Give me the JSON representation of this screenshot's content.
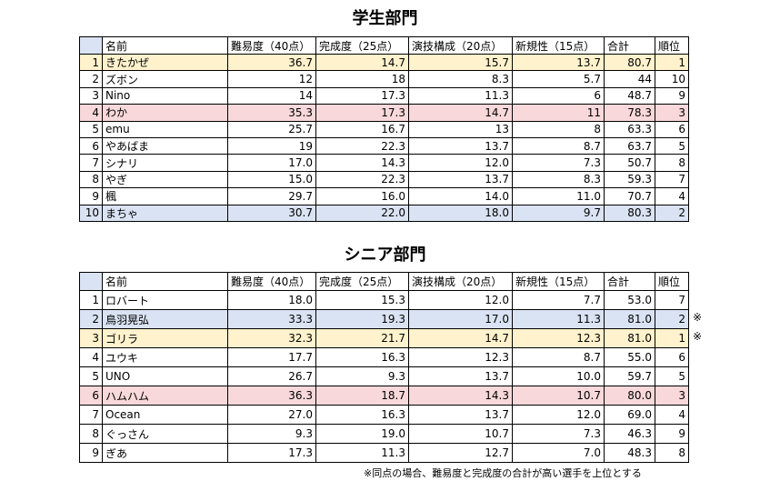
{
  "sections": [
    {
      "title": "学生部門",
      "header": [
        null,
        "名前",
        "難易度（40点）",
        "完成度（25点）",
        "演技構成（20点）",
        "新規性（15点）",
        "合計",
        "順位"
      ],
      "rows": [
        [
          "1",
          "きたかぜ",
          "36.7",
          "14.7",
          "15.7",
          "13.7",
          "80.7",
          "1"
        ],
        [
          "2",
          "ズボン",
          "12",
          "18",
          "8.3",
          "5.7",
          "44",
          "10"
        ],
        [
          "3",
          "Nino",
          "14",
          "17.3",
          "11.3",
          "6",
          "48.7",
          "9"
        ],
        [
          "4",
          "わか",
          "35.3",
          "17.3",
          "14.7",
          "11",
          "78.3",
          "3"
        ],
        [
          "5",
          "emu",
          "25.7",
          "16.7",
          "13",
          "8",
          "63.3",
          "6"
        ],
        [
          "6",
          "やあばま",
          "19",
          "22.3",
          "13.7",
          "8.7",
          "63.7",
          "5"
        ],
        [
          "7",
          "シナリ",
          "17.0",
          "14.3",
          "12.0",
          "7.3",
          "50.7",
          "8"
        ],
        [
          "8",
          "やぎ",
          "15.0",
          "22.3",
          "13.7",
          "8.3",
          "59.3",
          "7"
        ],
        [
          "9",
          "楓",
          "29.7",
          "16.0",
          "14.0",
          "11.0",
          "70.7",
          "4"
        ],
        [
          "10",
          "まちゃ",
          "30.7",
          "22.0",
          "18.0",
          "9.7",
          "80.3",
          "2"
        ]
      ],
      "row_colors": [
        "#fff2cc",
        null,
        null,
        "#f8d8da",
        null,
        null,
        null,
        null,
        null,
        "#dae3f3"
      ],
      "row_notes": [
        null,
        null,
        null,
        null,
        null,
        null,
        null,
        null,
        null,
        null
      ]
    },
    {
      "title": "シニア部門",
      "header": [
        null,
        "名前",
        "難易度（40点）",
        "完成度（25点）",
        "演技構成（20点）",
        "新規性（15点）",
        "合計",
        "順位"
      ],
      "rows": [
        [
          "1",
          "ロバート",
          "18.0",
          "15.3",
          "12.0",
          "7.7",
          "53.0",
          "7"
        ],
        [
          "2",
          "鳥羽晃弘",
          "33.3",
          "19.3",
          "17.0",
          "11.3",
          "81.0",
          "2"
        ],
        [
          "3",
          "ゴリラ",
          "32.3",
          "21.7",
          "14.7",
          "12.3",
          "81.0",
          "1"
        ],
        [
          "4",
          "ユウキ",
          "17.7",
          "16.3",
          "12.3",
          "8.7",
          "55.0",
          "6"
        ],
        [
          "5",
          "UNO",
          "26.7",
          "9.3",
          "13.7",
          "10.0",
          "59.7",
          "5"
        ],
        [
          "6",
          "ハムハム",
          "36.3",
          "18.7",
          "14.3",
          "10.7",
          "80.0",
          "3"
        ],
        [
          "7",
          "Ocean",
          "27.0",
          "16.3",
          "13.7",
          "12.0",
          "69.0",
          "4"
        ],
        [
          "8",
          "ぐっさん",
          "9.3",
          "19.0",
          "10.7",
          "7.3",
          "46.3",
          "9"
        ],
        [
          "9",
          "ぎあ",
          "17.3",
          "11.3",
          "12.7",
          "7.0",
          "48.3",
          "8"
        ]
      ],
      "row_colors": [
        null,
        "#dae3f3",
        "#fff2cc",
        null,
        null,
        "#f8d8da",
        null,
        null,
        null
      ],
      "row_notes": [
        null,
        "※",
        "※",
        null,
        null,
        null,
        null,
        null,
        null
      ]
    }
  ],
  "footnote": "※同点の場合、難易度と完成度の合計が高い選手を上位とする"
}
